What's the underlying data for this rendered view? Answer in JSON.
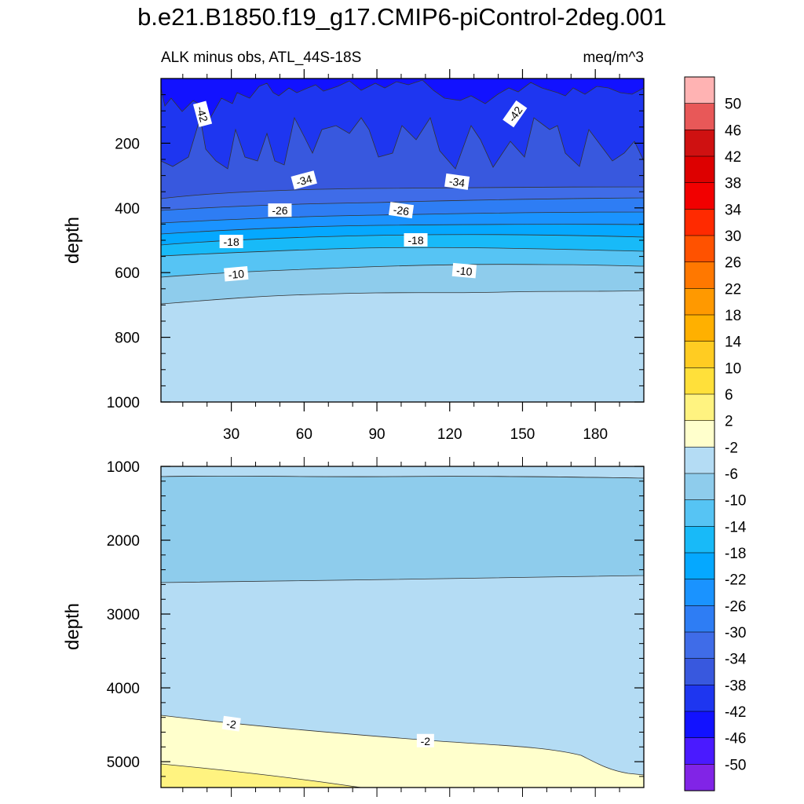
{
  "title": "b.e21.B1850.f19_g17.CMIP6-piControl-2deg.001",
  "chart_data": {
    "type": "heatmap",
    "subtitle_left": "ALK minus obs, ATL_44S-18S",
    "units": "meq/m^3",
    "ylabel": "depth",
    "upper_panel": {
      "ylim": [
        1000,
        0
      ],
      "yticks": [
        200,
        400,
        600,
        800,
        1000
      ],
      "xticks": [
        30,
        60,
        90,
        120,
        150,
        180
      ],
      "contour_labels": [
        {
          "text": "-42",
          "x": 18,
          "y": 110
        },
        {
          "text": "-42",
          "x": 147,
          "y": 110
        },
        {
          "text": "-34",
          "x": 60,
          "y": 315
        },
        {
          "text": "-34",
          "x": 123,
          "y": 320
        },
        {
          "text": "-26",
          "x": 50,
          "y": 408
        },
        {
          "text": "-26",
          "x": 100,
          "y": 408
        },
        {
          "text": "-18",
          "x": 30,
          "y": 505
        },
        {
          "text": "-18",
          "x": 106,
          "y": 500
        },
        {
          "text": "-10",
          "x": 32,
          "y": 605
        },
        {
          "text": "-10",
          "x": 126,
          "y": 595
        }
      ]
    },
    "lower_panel": {
      "ylim": [
        5350,
        1000
      ],
      "yticks": [
        1000,
        2000,
        3000,
        4000,
        5000
      ],
      "contour_labels": [
        {
          "text": "-2",
          "x": 30,
          "y": 4490
        },
        {
          "text": "-2",
          "x": 110,
          "y": 4720
        }
      ]
    },
    "colorbar": {
      "labels": [
        "50",
        "46",
        "42",
        "38",
        "34",
        "30",
        "26",
        "22",
        "18",
        "14",
        "10",
        "6",
        "2",
        "-2",
        "-6",
        "-10",
        "-14",
        "-18",
        "-22",
        "-26",
        "-30",
        "-34",
        "-38",
        "-42",
        "-46",
        "-50"
      ],
      "colors": [
        "#FFB3B3",
        "#E85858",
        "#CF1111",
        "#DD0000",
        "#F20000",
        "#FF2A00",
        "#FF5200",
        "#FF7800",
        "#FF9900",
        "#FFB000",
        "#FFCC22",
        "#FFE03A",
        "#FFF380",
        "#FFFFCC",
        "#B4DCF4",
        "#8ECCEC",
        "#56C4F4",
        "#18BAF8",
        "#05A8FF",
        "#1A93FF",
        "#2E7DF4",
        "#3F6CE8",
        "#3858DE",
        "#1E36F0",
        "#1212FF",
        "#4A1AFF",
        "#8124E6"
      ]
    }
  }
}
